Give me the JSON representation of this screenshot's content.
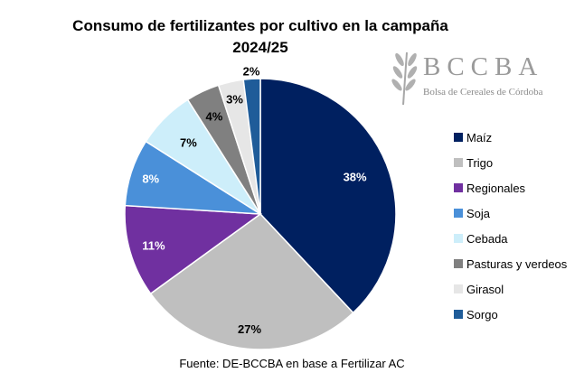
{
  "chart_data": {
    "type": "pie",
    "title": "Consumo de fertilizantes por cultivo en la campaña 2024/25",
    "categories": [
      "Maíz",
      "Trigo",
      "Regionales",
      "Soja",
      "Cebada",
      "Pasturas y verdeos",
      "Girasol",
      "Sorgo"
    ],
    "values": [
      38,
      27,
      11,
      8,
      7,
      4,
      3,
      2
    ],
    "data_labels": [
      "38%",
      "27%",
      "11%",
      "8%",
      "7%",
      "4%",
      "3%",
      "2%"
    ],
    "colors": [
      "#002060",
      "#bfbfbf",
      "#7030a0",
      "#4a90d9",
      "#cdeefa",
      "#808080",
      "#e6e6e6",
      "#1f5c99"
    ],
    "label_colors": [
      "#ffffff",
      "#000000",
      "#ffffff",
      "#ffffff",
      "#000000",
      "#000000",
      "#000000",
      "#000000"
    ],
    "legend_position": "right",
    "start": "top, clockwise"
  },
  "source": "Fuente: DE-BCCBA en base a Fertilizar AC",
  "logo": {
    "name": "BCCBA",
    "subtitle": "Bolsa de Cereales de Córdoba"
  }
}
